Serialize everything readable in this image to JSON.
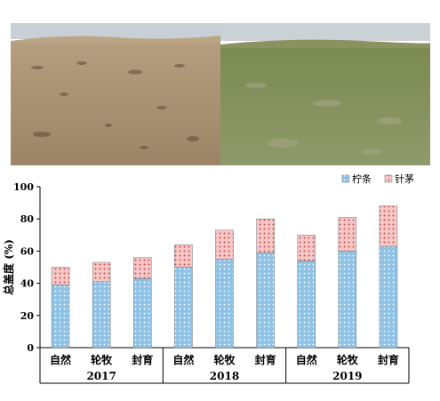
{
  "photos": [
    {
      "name": "degraded-grassland-photo",
      "sky": "#c6cdd4",
      "horizon": "#b79f7f",
      "ground": "#a99377"
    },
    {
      "name": "restored-grassland-photo",
      "sky": "#c9d0d3",
      "horizon": "#7f8c55",
      "ground": "#8a9866"
    }
  ],
  "chart_data": {
    "type": "bar",
    "stacked": true,
    "ylabel": "总盖度 (%)",
    "ylim": [
      0,
      100
    ],
    "yticks": [
      0,
      20,
      40,
      60,
      80,
      100
    ],
    "categories": [
      "自然",
      "轮牧",
      "封育",
      "自然",
      "轮牧",
      "封育",
      "自然",
      "轮牧",
      "封育"
    ],
    "groups": [
      {
        "label": "2017",
        "span": [
          0,
          2
        ]
      },
      {
        "label": "2018",
        "span": [
          3,
          5
        ]
      },
      {
        "label": "2019",
        "span": [
          6,
          8
        ]
      }
    ],
    "series": [
      {
        "name": "柠条",
        "color": "#8fc3e6",
        "dot": "#ffffff",
        "values": [
          39,
          41,
          43,
          50,
          55,
          59,
          54,
          60,
          63
        ]
      },
      {
        "name": "针茅",
        "color": "#f0a8a8",
        "dot": "#d14a4a",
        "values": [
          11,
          12,
          13,
          14,
          18,
          21,
          16,
          21,
          25
        ]
      }
    ],
    "legend_position": "top-right"
  }
}
